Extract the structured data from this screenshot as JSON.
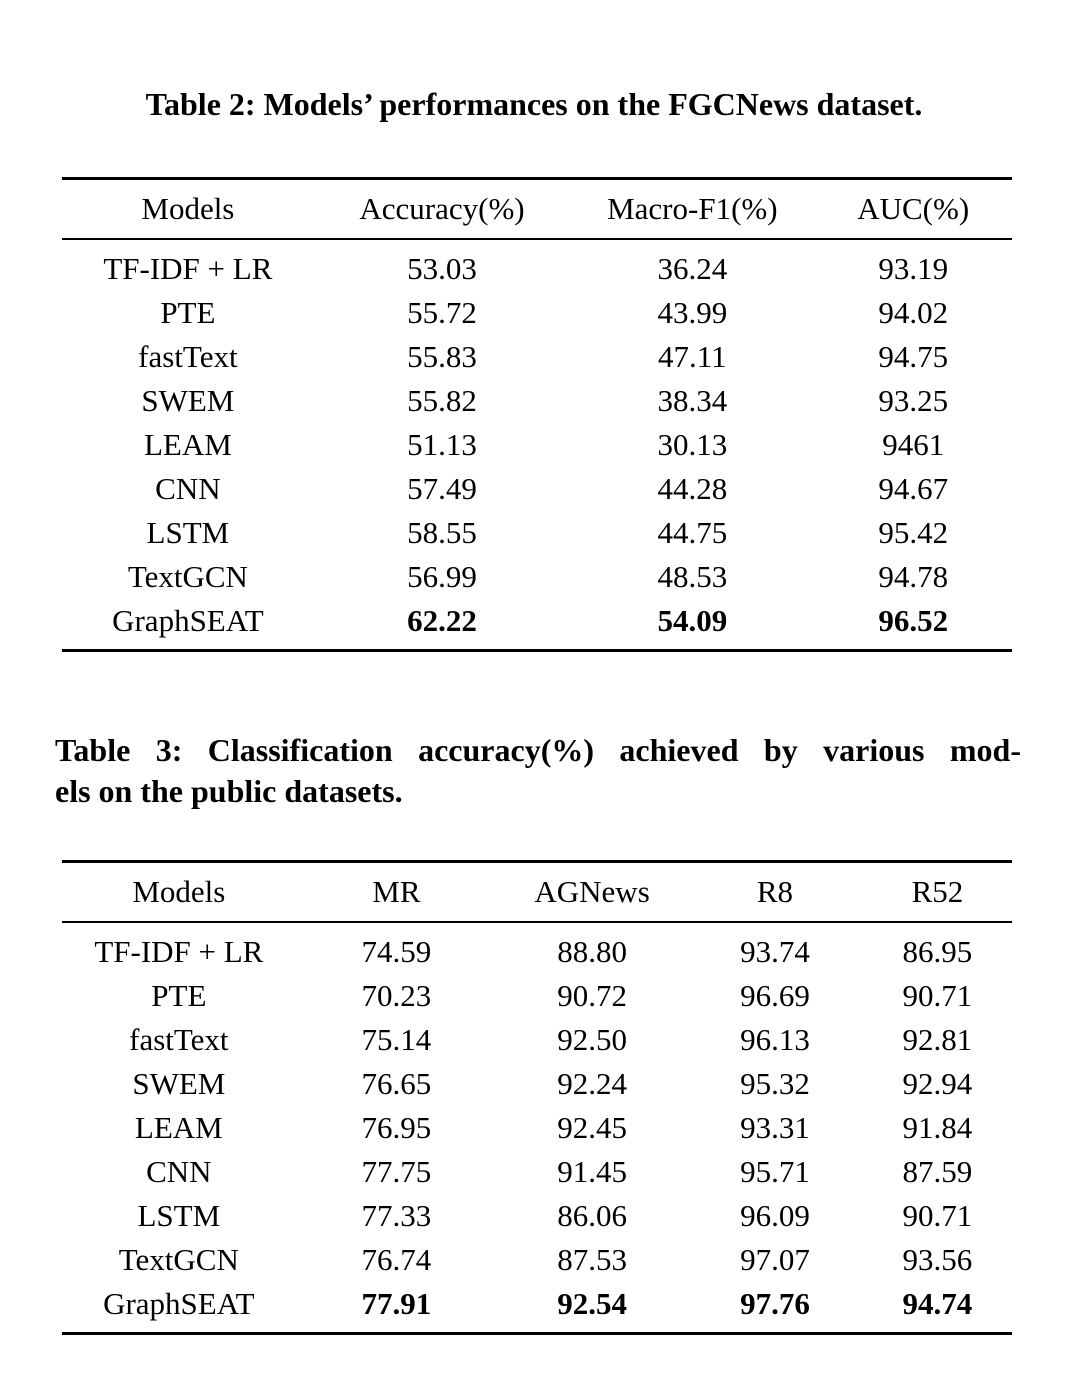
{
  "page": {
    "background_color": "#ffffff",
    "text_color": "#000000"
  },
  "table2": {
    "caption": "Table 2: Models’ performances on the FGCNews dataset.",
    "headers": [
      "Models",
      "Accuracy(%)",
      "Macro-F1(%)",
      "AUC(%)"
    ],
    "rows": [
      {
        "model": "TF-IDF + LR",
        "values": [
          "53.03",
          "36.24",
          "93.19"
        ],
        "best": false
      },
      {
        "model": "PTE",
        "values": [
          "55.72",
          "43.99",
          "94.02"
        ],
        "best": false
      },
      {
        "model": "fastText",
        "values": [
          "55.83",
          "47.11",
          "94.75"
        ],
        "best": false
      },
      {
        "model": "SWEM",
        "values": [
          "55.82",
          "38.34",
          "93.25"
        ],
        "best": false
      },
      {
        "model": "LEAM",
        "values": [
          "51.13",
          "30.13",
          "9461"
        ],
        "best": false
      },
      {
        "model": "CNN",
        "values": [
          "57.49",
          "44.28",
          "94.67"
        ],
        "best": false
      },
      {
        "model": "LSTM",
        "values": [
          "58.55",
          "44.75",
          "95.42"
        ],
        "best": false
      },
      {
        "model": "TextGCN",
        "values": [
          "56.99",
          "48.53",
          "94.78"
        ],
        "best": false
      },
      {
        "model": "GraphSEAT",
        "values": [
          "62.22",
          "54.09",
          "96.52"
        ],
        "best": true
      }
    ]
  },
  "table3": {
    "caption_line1": "Table 3: Classification accuracy(%) achieved by various mod-",
    "caption_line2": "els on the public datasets.",
    "headers": [
      "Models",
      "MR",
      "AGNews",
      "R8",
      "R52"
    ],
    "rows": [
      {
        "model": "TF-IDF + LR",
        "values": [
          "74.59",
          "88.80",
          "93.74",
          "86.95"
        ],
        "best": false
      },
      {
        "model": "PTE",
        "values": [
          "70.23",
          "90.72",
          "96.69",
          "90.71"
        ],
        "best": false
      },
      {
        "model": "fastText",
        "values": [
          "75.14",
          "92.50",
          "96.13",
          "92.81"
        ],
        "best": false
      },
      {
        "model": "SWEM",
        "values": [
          "76.65",
          "92.24",
          "95.32",
          "92.94"
        ],
        "best": false
      },
      {
        "model": "LEAM",
        "values": [
          "76.95",
          "92.45",
          "93.31",
          "91.84"
        ],
        "best": false
      },
      {
        "model": "CNN",
        "values": [
          "77.75",
          "91.45",
          "95.71",
          "87.59"
        ],
        "best": false
      },
      {
        "model": "LSTM",
        "values": [
          "77.33",
          "86.06",
          "96.09",
          "90.71"
        ],
        "best": false
      },
      {
        "model": "TextGCN",
        "values": [
          "76.74",
          "87.53",
          "97.07",
          "93.56"
        ],
        "best": false
      },
      {
        "model": "GraphSEAT",
        "values": [
          "77.91",
          "92.54",
          "97.76",
          "94.74"
        ],
        "best": true
      }
    ]
  }
}
